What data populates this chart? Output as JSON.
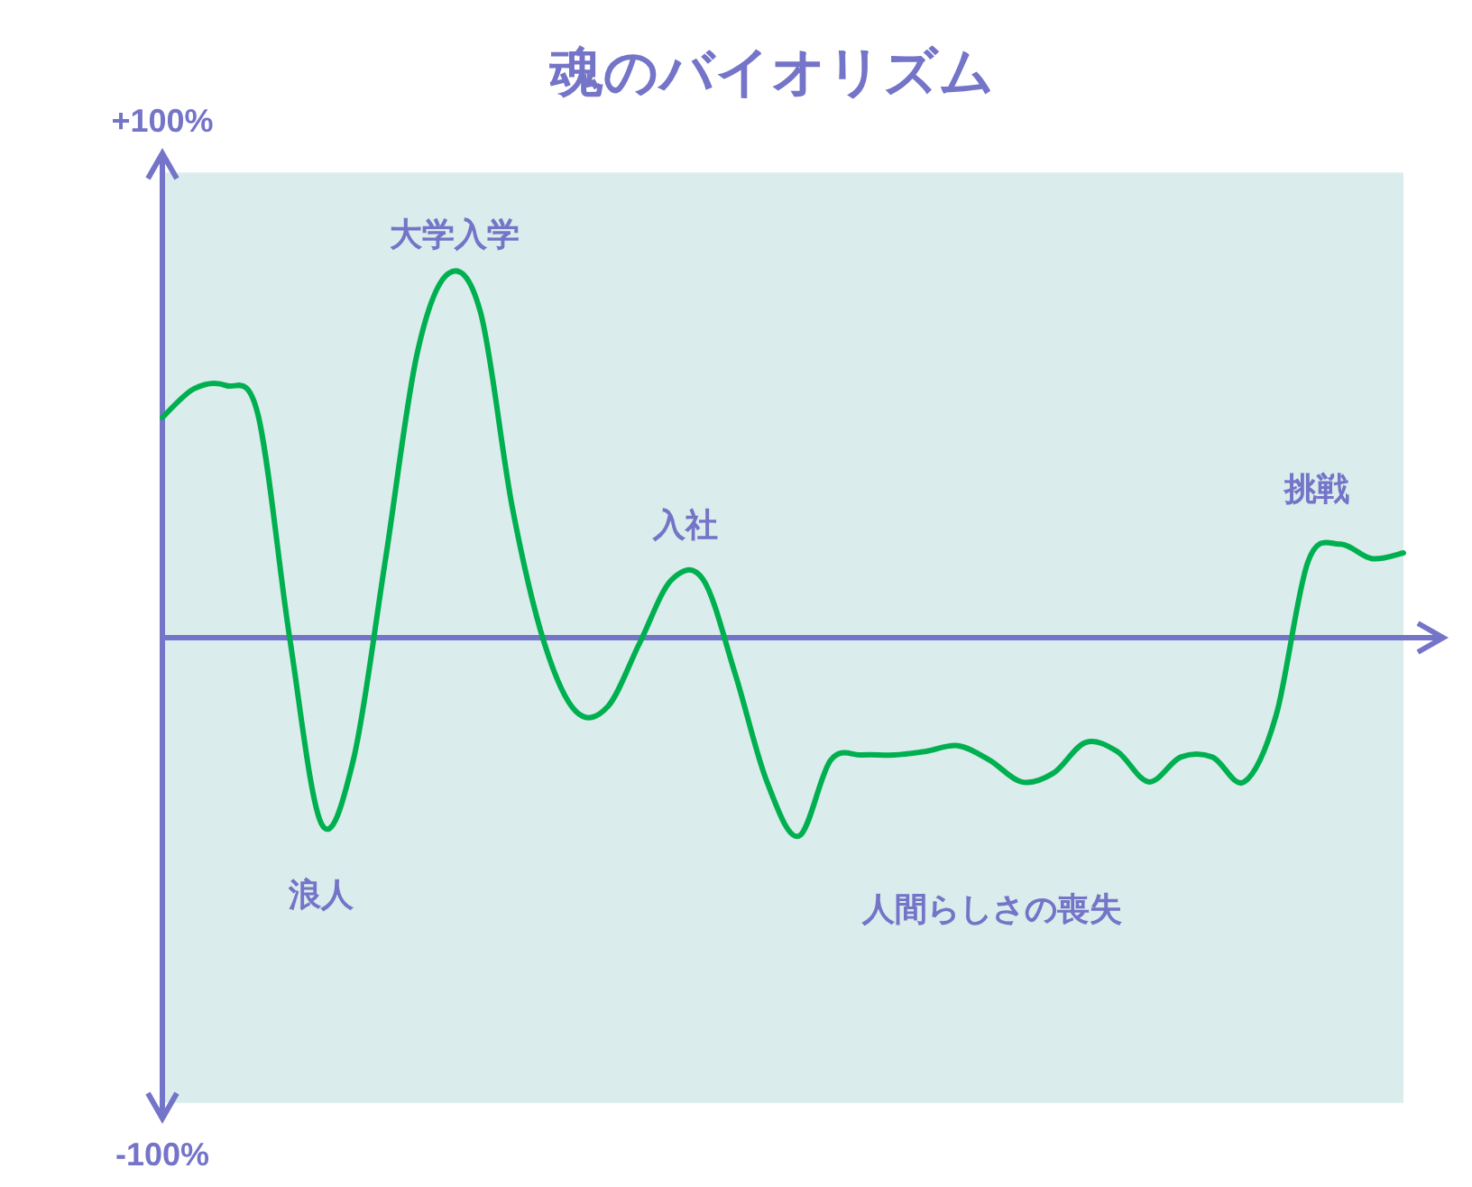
{
  "chart_data": {
    "type": "line",
    "title": "魂のバイオリズム",
    "categories": [
      null,
      null,
      null,
      null,
      null,
      null,
      null,
      null,
      null,
      null,
      null,
      null,
      null,
      null,
      null,
      null,
      null,
      null,
      null,
      null,
      null,
      null,
      null,
      null,
      null,
      null,
      null,
      null,
      null,
      null,
      null,
      null,
      null,
      null,
      null,
      null,
      null,
      null,
      null,
      null
    ],
    "series": [
      {
        "color": "#00b050",
        "values": [
          42.6,
          48.2,
          48.8,
          43.3,
          0,
          -36.0,
          -23.7,
          14.7,
          54.8,
          70.5,
          62.9,
          25.1,
          -1.0,
          -14.3,
          -13.3,
          -1.0,
          11.2,
          11.2,
          -7.0,
          -27.9,
          -38.4,
          -23.7,
          -22.7,
          -22.7,
          -22.0,
          -20.9,
          -23.7,
          -27.9,
          -26.2,
          -20.3,
          -22.0,
          -27.9,
          -23.1,
          -23.1,
          -27.9,
          -15.0,
          14.7,
          18.1,
          15.3,
          16.4
        ]
      }
    ],
    "ref_lines": [
      {
        "axis": "y",
        "value": 0,
        "color": "#7474c8"
      }
    ],
    "ylim": [
      -100,
      100
    ],
    "yticks": [
      {
        "value": 100,
        "label": "+100%"
      },
      {
        "value": -100,
        "label": "-100%"
      }
    ],
    "annotations": [
      "大学入学",
      "浪人",
      "入社",
      "人間らしさの喪失",
      "挑戦"
    ],
    "marker": "none",
    "line_style": "solid"
  }
}
